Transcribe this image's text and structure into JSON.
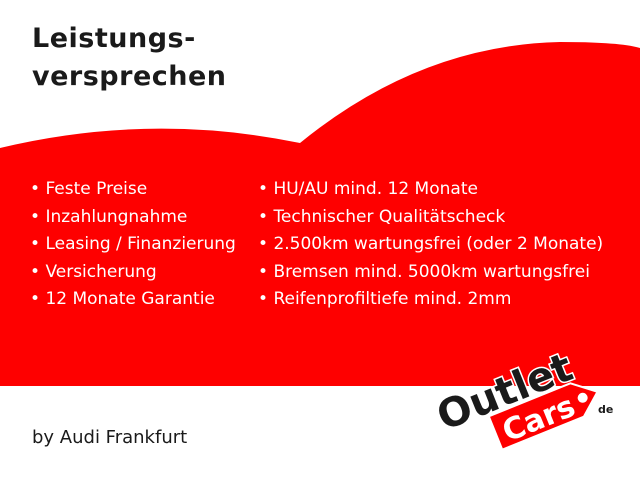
{
  "title_lines": [
    "Leistungs-",
    "versprechen"
  ],
  "left_list": [
    "Feste Preise",
    "Inzahlungnahme",
    "Leasing / Finanzierung",
    "Versicherung",
    "12 Monate Garantie"
  ],
  "right_list": [
    "HU/AU mind. 12 Monate",
    "Technischer Qualitätscheck",
    "2.500km wartungsfrei (oder 2 Monate)",
    "Bremsen mind. 5000km  wartungsfrei",
    "Reifenprofiltiefe mind. 2mm"
  ],
  "footer": "by Audi Frankfurt",
  "logo": {
    "line1": "Outlet",
    "line2": "Cars",
    "suffix": ".de"
  },
  "colors": {
    "brand_red": "#fe0000",
    "text_dark": "#1a1a1a"
  }
}
